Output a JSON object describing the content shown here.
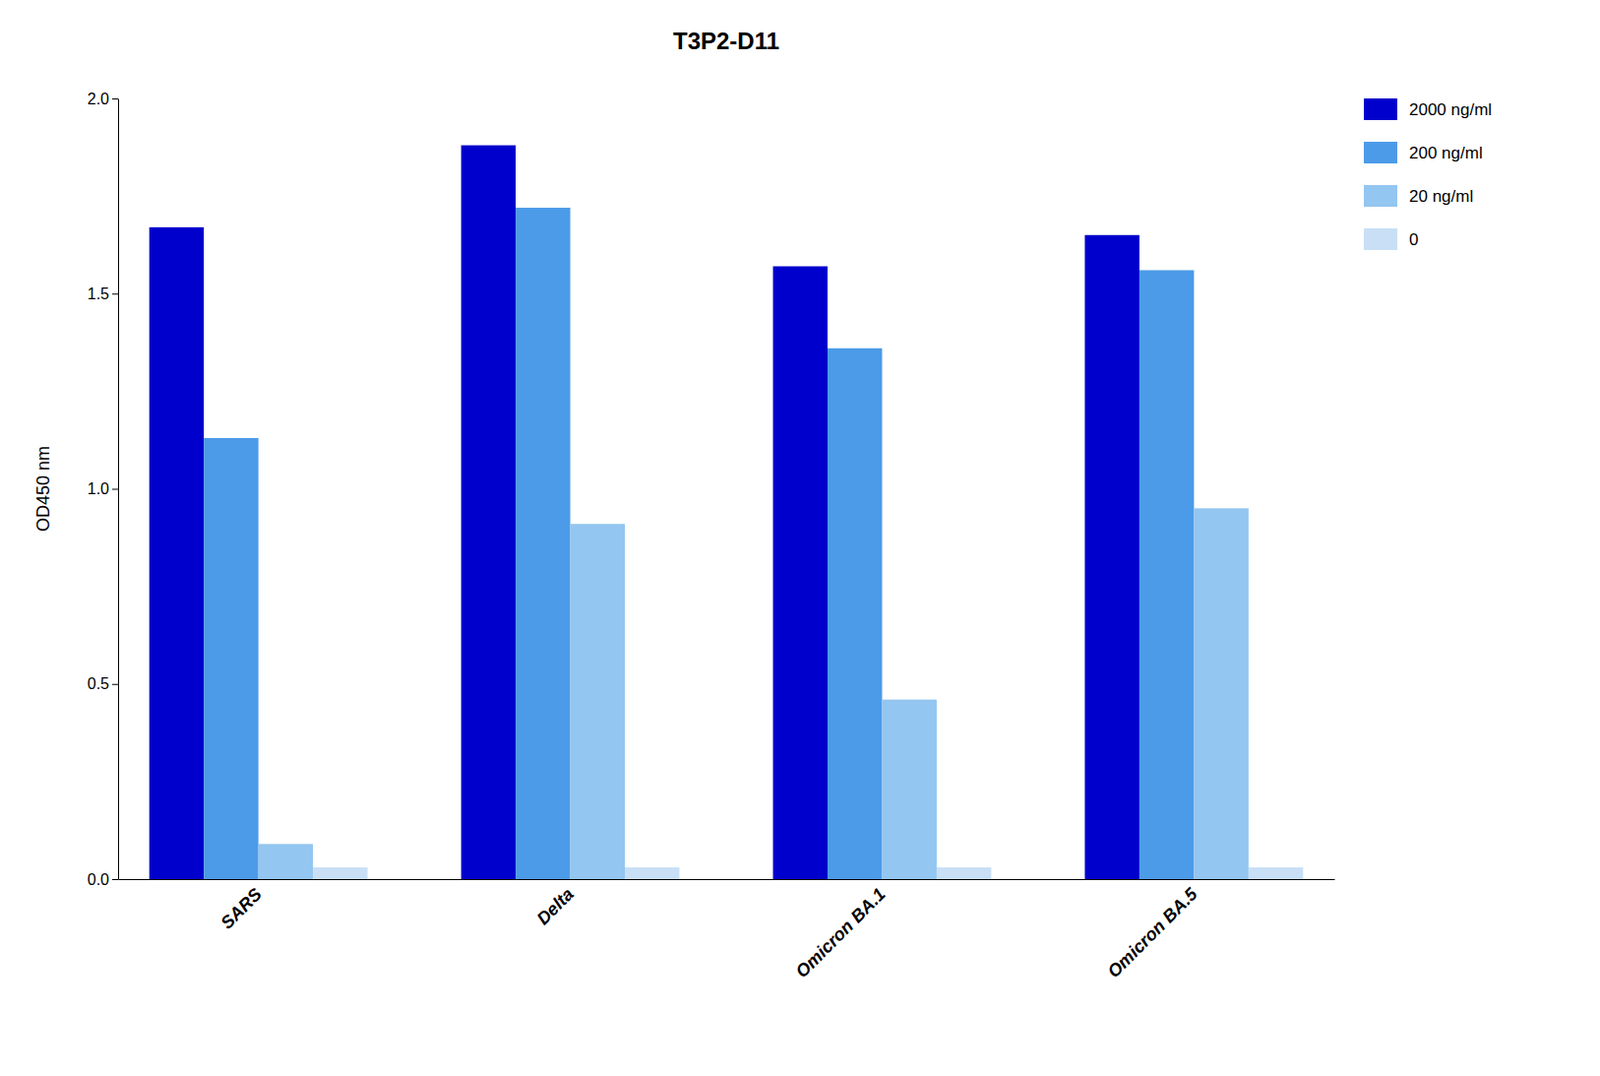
{
  "chart_data": {
    "type": "bar",
    "title": "T3P2-D11",
    "categories": [
      "SARS",
      "Delta",
      "Omicron BA.1",
      "Omicron BA.5"
    ],
    "series": [
      {
        "name": "2000 ng/ml",
        "color": "#0000CC",
        "values": [
          1.67,
          1.88,
          1.57,
          1.65
        ]
      },
      {
        "name": "200 ng/ml",
        "color": "#4C9BE8",
        "values": [
          1.13,
          1.72,
          1.36,
          1.56
        ]
      },
      {
        "name": "20 ng/ml",
        "color": "#93C6F0",
        "values": [
          0.09,
          0.91,
          0.46,
          0.95
        ]
      },
      {
        "name": "0",
        "color": "#C8DFF5",
        "values": [
          0.03,
          0.03,
          0.03,
          0.03
        ]
      }
    ],
    "ylabel": "OD450 nm",
    "ylim": [
      0.0,
      2.0
    ],
    "yticks": [
      {
        "value": 0.0,
        "label": "0.0"
      },
      0.5,
      {
        "value": 1.0,
        "label": "1.0"
      },
      1.5,
      {
        "value": 2.0,
        "label": "2.0"
      }
    ],
    "grid": false,
    "legend": "right"
  }
}
